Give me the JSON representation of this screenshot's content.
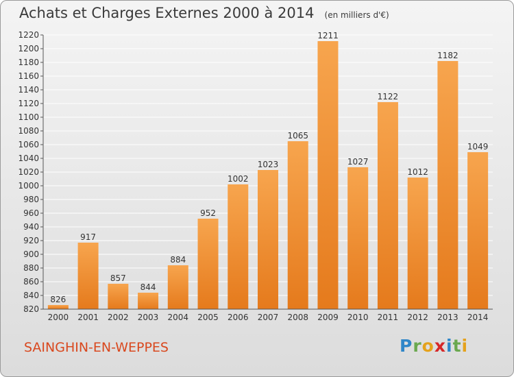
{
  "title": "Achats et Charges Externes 2000 à 2014",
  "unit_note": "(en milliers d'€)",
  "commune": "SAINGHIN-EN-WEPPES",
  "logo_text": "Proxiti",
  "colors": {
    "bar_top": "#f7a54e",
    "bar_bottom": "#e57a1c",
    "commune_text": "#d9481e",
    "grid": "#ffffff"
  },
  "chart_data": {
    "type": "bar",
    "title": "Achats et Charges Externes 2000 à 2014",
    "categories": [
      "2000",
      "2001",
      "2002",
      "2003",
      "2004",
      "2005",
      "2006",
      "2007",
      "2008",
      "2009",
      "2010",
      "2011",
      "2012",
      "2013",
      "2014"
    ],
    "values": [
      826,
      917,
      857,
      844,
      884,
      952,
      1002,
      1023,
      1065,
      1211,
      1027,
      1122,
      1012,
      1182,
      1049
    ],
    "ylim": [
      820,
      1220
    ],
    "yticks": [
      820,
      840,
      860,
      880,
      900,
      920,
      940,
      960,
      980,
      1000,
      1020,
      1040,
      1060,
      1080,
      1100,
      1120,
      1140,
      1160,
      1180,
      1200,
      1220
    ],
    "grid": true,
    "data_labels": true
  }
}
